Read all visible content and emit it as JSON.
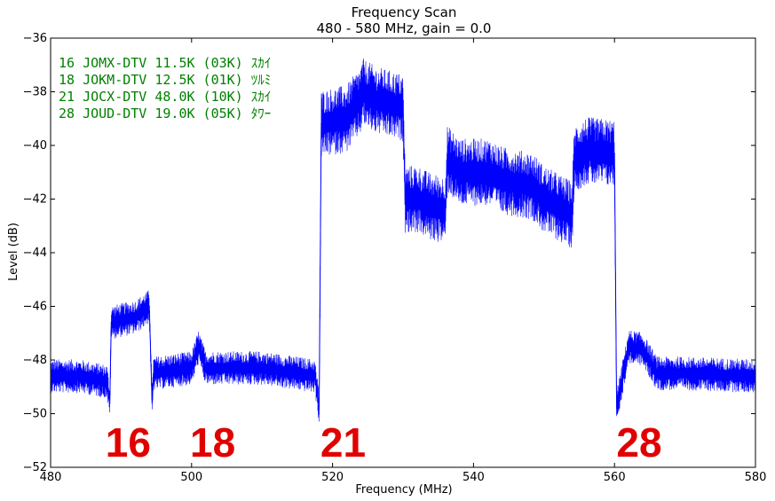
{
  "chart_data": {
    "type": "line",
    "title": "Frequency Scan",
    "subtitle": "480 - 580 MHz, gain = 0.0",
    "xlabel": "Frequency (MHz)",
    "ylabel": "Level (dB)",
    "xlim": [
      480,
      580
    ],
    "ylim": [
      -52,
      -36
    ],
    "x_ticks": [
      480,
      500,
      520,
      540,
      560,
      580
    ],
    "y_ticks": [
      -36,
      -38,
      -40,
      -42,
      -44,
      -46,
      -48,
      -50,
      -52
    ],
    "x_tick_labels": [
      "480",
      "500",
      "520",
      "540",
      "560",
      "580"
    ],
    "y_tick_labels": [
      "−36",
      "−38",
      "−40",
      "−42",
      "−44",
      "−46",
      "−48",
      "−50",
      "−52"
    ],
    "grid": false,
    "series_color": "#0000ff",
    "series": [
      {
        "x": [
          480,
          484,
          488,
          488.4,
          488.6,
          492,
          494,
          494.4,
          494.6,
          500,
          501,
          502,
          510,
          517.5,
          518.1,
          518.4,
          522,
          524,
          524.3,
          526,
          530,
          530.3,
          532,
          534,
          536,
          536.3,
          538,
          542,
          542.3,
          544,
          548,
          548.3,
          550,
          554,
          554.3,
          556,
          560,
          560.3,
          562,
          564,
          566,
          570,
          580
        ],
        "y": [
          -48.6,
          -48.6,
          -48.8,
          -49.6,
          -46.6,
          -46.4,
          -46.0,
          -49.6,
          -48.5,
          -48.3,
          -47.5,
          -48.3,
          -48.3,
          -48.6,
          -49.8,
          -39.2,
          -39.0,
          -38.3,
          -38.0,
          -38.3,
          -38.6,
          -42.0,
          -42.0,
          -42.3,
          -42.4,
          -40.5,
          -41.0,
          -41.0,
          -41.0,
          -41.3,
          -41.5,
          -41.5,
          -42.0,
          -42.6,
          -40.5,
          -40.2,
          -40.3,
          -49.8,
          -47.5,
          -47.6,
          -48.5,
          -48.5,
          -48.6
        ]
      }
    ],
    "annotations": {
      "legend_lines": [
        "16 JOMX-DTV 11.5K (03K) ｽｶｲ",
        "18 JOKM-DTV 12.5K (01K) ﾂﾙﾐ",
        "21 JOCX-DTV 48.0K (10K) ｽｶｲ",
        "28 JOUD-DTV 19.0K (05K) ﾀﾜｰ"
      ],
      "channel_labels": [
        {
          "text": "16",
          "x": 491
        },
        {
          "text": "18",
          "x": 503
        },
        {
          "text": "21",
          "x": 521.5
        },
        {
          "text": "28",
          "x": 563.5
        }
      ],
      "channel_label_y": -51
    },
    "legend_position": "top-left"
  }
}
